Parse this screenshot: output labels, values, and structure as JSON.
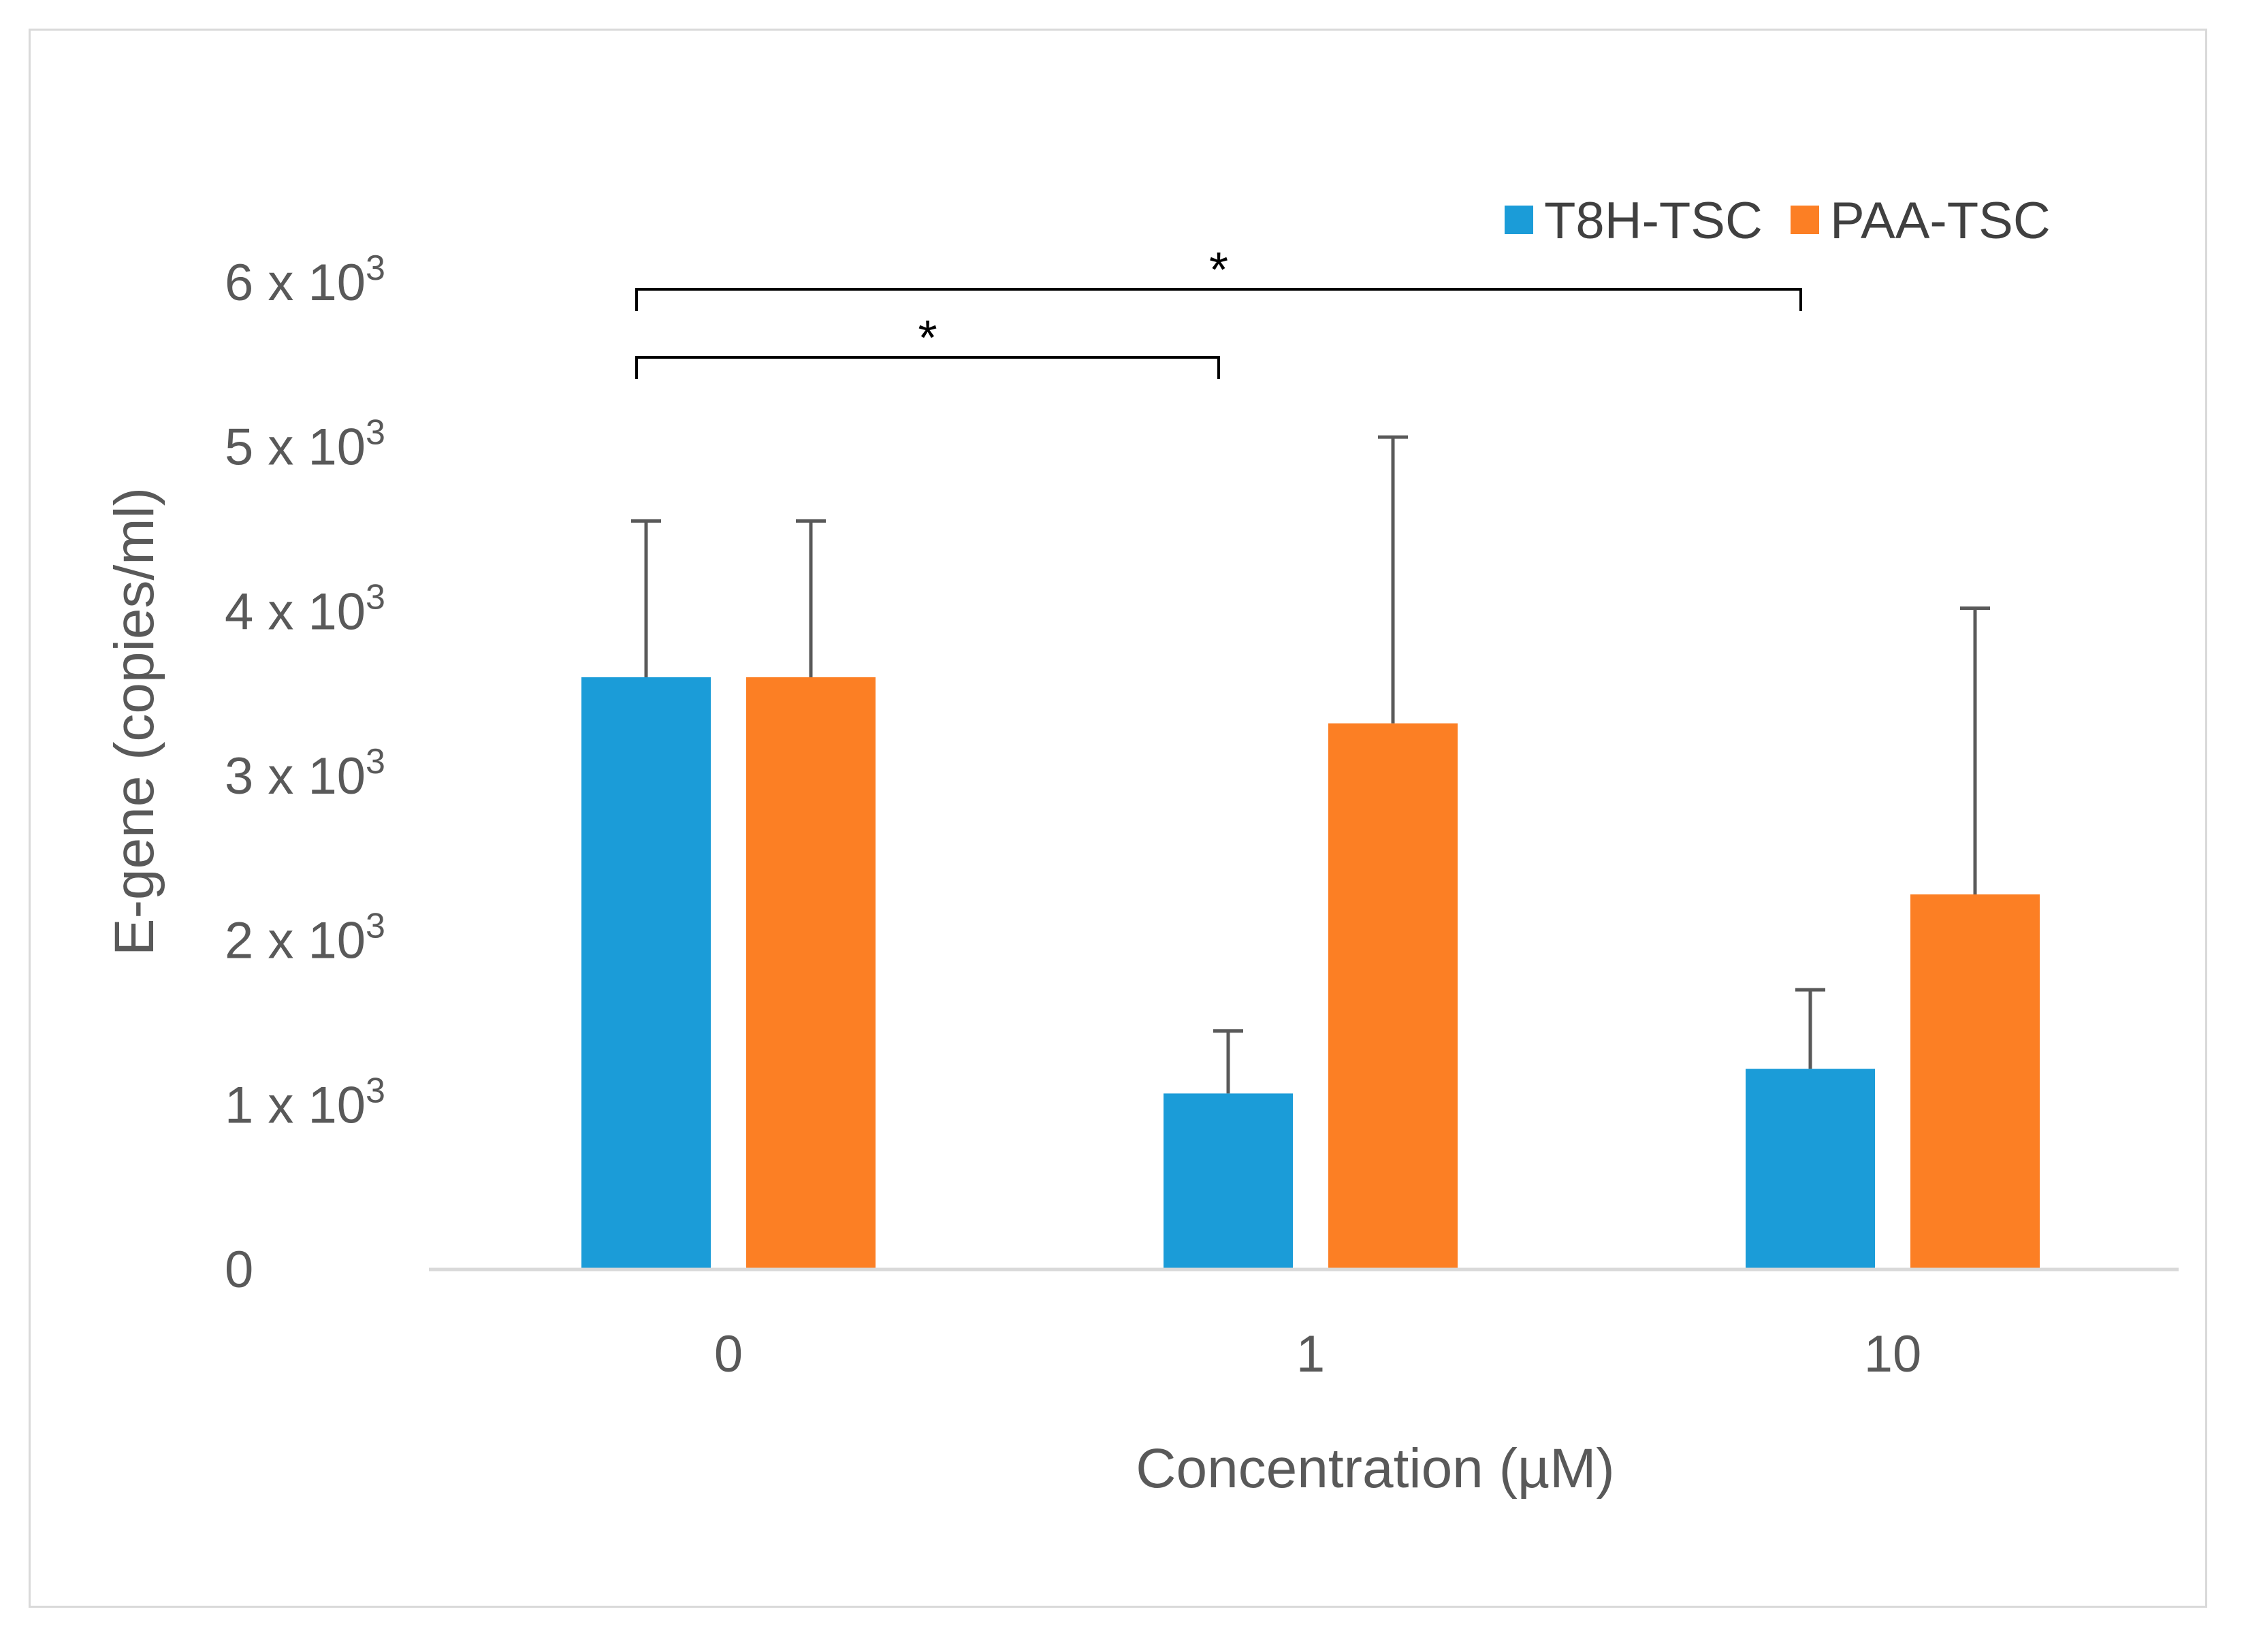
{
  "chart_data": {
    "type": "bar",
    "categories": [
      "0",
      "1",
      "10"
    ],
    "series": [
      {
        "name": "T8H-TSC",
        "color": "#1b9cd8",
        "values": [
          3600,
          1070,
          1220
        ],
        "error_upper": [
          4550,
          1450,
          1700
        ]
      },
      {
        "name": "PAA-TSC",
        "color": "#fc7f24",
        "values": [
          3600,
          3320,
          2280
        ],
        "error_upper": [
          4550,
          5060,
          4020
        ]
      }
    ],
    "title": "",
    "xlabel": "Concentration (µM)",
    "ylabel": "E-gene (copies/ml)",
    "ylim": [
      0,
      6000
    ],
    "y_ticks": [
      {
        "value": 0,
        "base": "0",
        "exp": ""
      },
      {
        "value": 1000,
        "base": "1 x 10",
        "exp": "3"
      },
      {
        "value": 2000,
        "base": "2 x 10",
        "exp": "3"
      },
      {
        "value": 3000,
        "base": "3 x 10",
        "exp": "3"
      },
      {
        "value": 4000,
        "base": "4 x 10",
        "exp": "3"
      },
      {
        "value": 5000,
        "base": "5 x 10",
        "exp": "3"
      },
      {
        "value": 6000,
        "base": "6 x 10",
        "exp": "3"
      }
    ],
    "legend_position": "top-right",
    "gridlines": false,
    "significance": [
      {
        "from": "0",
        "to": "10",
        "label": "*"
      },
      {
        "from": "0",
        "to": "1",
        "label": "*"
      }
    ]
  },
  "colors": {
    "axis": "#d9d9d9",
    "text": "#595959",
    "error_bar": "#595959",
    "bracket": "#000000"
  }
}
